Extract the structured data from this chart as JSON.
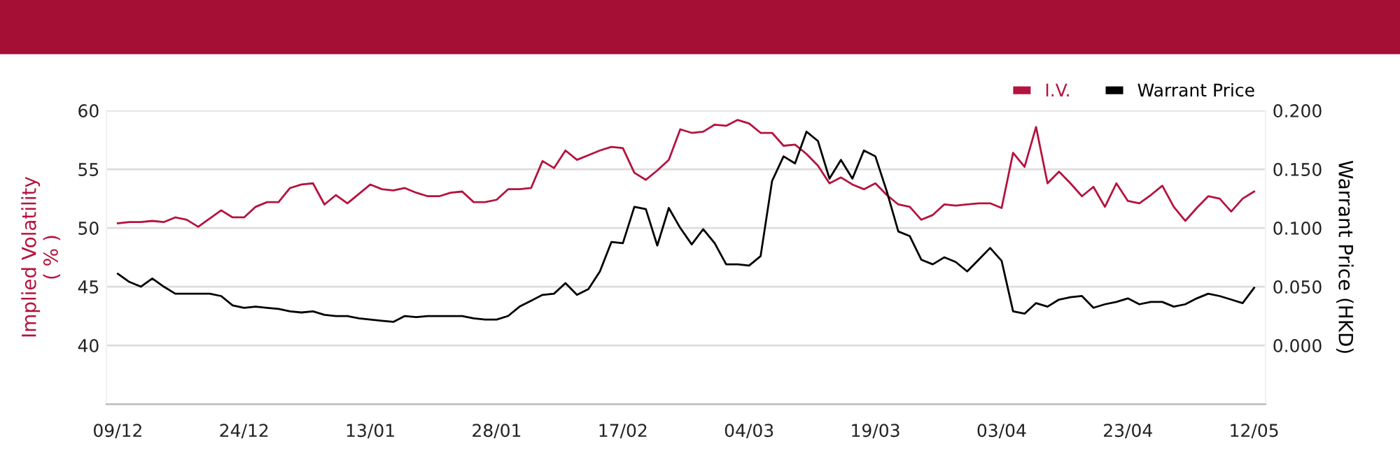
{
  "chart_data": {
    "type": "line",
    "categories": [
      "09/12",
      null,
      null,
      null,
      null,
      null,
      null,
      null,
      null,
      null,
      null,
      "24/12",
      null,
      null,
      null,
      null,
      null,
      null,
      null,
      null,
      null,
      null,
      "13/01",
      null,
      null,
      null,
      null,
      null,
      null,
      null,
      null,
      null,
      null,
      "28/01",
      null,
      null,
      null,
      null,
      null,
      null,
      null,
      null,
      null,
      null,
      "17/02",
      null,
      null,
      null,
      null,
      null,
      null,
      null,
      null,
      null,
      null,
      "04/03",
      null,
      null,
      null,
      null,
      null,
      null,
      null,
      null,
      null,
      null,
      "19/03",
      null,
      null,
      null,
      null,
      null,
      null,
      null,
      null,
      null,
      null,
      "03/04",
      null,
      null,
      null,
      null,
      null,
      null,
      null,
      null,
      null,
      null,
      "23/04",
      null,
      null,
      null,
      null,
      null,
      null,
      null,
      null,
      null,
      null,
      "12/05"
    ],
    "series": [
      {
        "name": "I.V.",
        "color": "#b5123e",
        "axis": "y",
        "values": [
          50.4,
          50.5,
          50.5,
          50.6,
          50.5,
          50.9,
          50.7,
          50.1,
          50.8,
          51.5,
          50.9,
          50.9,
          51.8,
          52.2,
          52.2,
          53.4,
          53.7,
          53.8,
          52.0,
          52.8,
          52.1,
          52.9,
          53.7,
          53.3,
          53.2,
          53.4,
          53.0,
          52.7,
          52.7,
          53.0,
          53.1,
          52.2,
          52.2,
          52.4,
          53.3,
          53.3,
          53.4,
          55.7,
          55.1,
          56.6,
          55.8,
          56.2,
          56.6,
          56.9,
          56.8,
          54.7,
          54.1,
          54.9,
          55.8,
          58.4,
          58.1,
          58.2,
          58.8,
          58.7,
          59.2,
          58.9,
          58.1,
          58.1,
          57.0,
          57.1,
          56.3,
          55.3,
          53.8,
          54.3,
          53.7,
          53.3,
          53.8,
          52.8,
          52.0,
          51.8,
          50.7,
          51.1,
          52.0,
          51.9,
          52.0,
          52.1,
          52.1,
          51.7,
          56.4,
          55.2,
          58.6,
          53.8,
          54.8,
          53.8,
          52.7,
          53.5,
          51.8,
          53.8,
          52.3,
          52.1,
          52.8,
          53.6,
          51.8,
          50.6,
          51.7,
          52.7,
          52.5,
          51.4,
          52.5,
          53.1
        ]
      },
      {
        "name": "Warrant Price",
        "color": "#000000",
        "axis": "y2",
        "values": [
          0.061,
          0.054,
          0.05,
          0.057,
          0.05,
          0.044,
          0.044,
          0.044,
          0.044,
          0.042,
          0.034,
          0.032,
          0.033,
          0.032,
          0.031,
          0.029,
          0.028,
          0.029,
          0.026,
          0.025,
          0.025,
          0.023,
          0.022,
          0.021,
          0.02,
          0.025,
          0.024,
          0.025,
          0.025,
          0.025,
          0.025,
          0.023,
          0.022,
          0.022,
          0.025,
          0.033,
          0.038,
          0.043,
          0.044,
          0.053,
          0.043,
          0.048,
          0.063,
          0.088,
          0.087,
          0.118,
          0.116,
          0.085,
          0.117,
          0.1,
          0.086,
          0.099,
          0.087,
          0.069,
          0.069,
          0.068,
          0.076,
          0.14,
          0.161,
          0.155,
          0.182,
          0.174,
          0.142,
          0.158,
          0.142,
          0.166,
          0.161,
          0.131,
          0.097,
          0.093,
          0.073,
          0.069,
          0.075,
          0.071,
          0.063,
          0.073,
          0.083,
          0.072,
          0.029,
          0.027,
          0.036,
          0.033,
          0.039,
          0.041,
          0.042,
          0.032,
          0.035,
          0.037,
          0.04,
          0.035,
          0.037,
          0.037,
          0.033,
          0.035,
          0.04,
          0.044,
          0.042,
          0.039,
          0.036,
          0.049
        ]
      }
    ],
    "ylabel": "Implied Volatility\n( % )",
    "y2label": "Warrant Price (HKD)",
    "ylim": [
      35,
      60
    ],
    "yticks": [
      40,
      45,
      50,
      55,
      60
    ],
    "y2lim": [
      -0.05,
      0.2
    ],
    "y2ticks": [
      {
        "value": 0,
        "label": "0.000"
      },
      {
        "value": 0.05,
        "label": "0.050"
      },
      {
        "value": 0.1,
        "label": "0.100"
      },
      {
        "value": 0.15,
        "label": "0.150"
      },
      {
        "value": 0.2,
        "label": "0.200"
      }
    ],
    "grid": "y",
    "legend": "top right"
  }
}
